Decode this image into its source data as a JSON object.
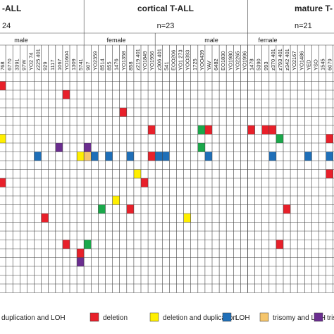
{
  "groups": [
    {
      "title": "-ALL",
      "n": "24",
      "sexes": [
        "male"
      ]
    },
    {
      "title": "cortical T-ALL",
      "n": "n=23",
      "sexes": [
        "female",
        "male"
      ]
    },
    {
      "title": "mature T-",
      "n": "n=21",
      "sexes": [
        "female"
      ]
    }
  ],
  "columns": [
    "768",
    "6770",
    "3391",
    "97W",
    "YO2 74",
    "z225 401",
    "929",
    "1117",
    "1067",
    "YO1604",
    "1309",
    "5741",
    "907",
    "YO2359",
    "8514",
    "855",
    "1476",
    "YO1358",
    "858",
    "z219 401",
    "YO1849",
    "YO1956",
    "z306 401",
    "541",
    "EOO206",
    "YO1 273",
    "YOO393",
    "1725",
    "YOO439",
    "YAV",
    "6482",
    "EO1830",
    "YO1980",
    "YO2265",
    "YO1996",
    "1478",
    "5390",
    "993",
    "z370 401",
    "z793 401",
    "z342 401",
    "YO2167",
    "YO1486",
    "YED",
    "YSO",
    "1545",
    "6079"
  ],
  "legend": [
    {
      "label": "duplication and LOH",
      "color": "#1aa84a"
    },
    {
      "label": "deletion",
      "color": "#e8202a"
    },
    {
      "label": "deletion and duplication",
      "color": "#ffef00"
    },
    {
      "label": "LOH",
      "color": "#1f6fb8"
    },
    {
      "label": "trisomy and LOH",
      "color": "#f5c56b"
    },
    {
      "label": "trisomy",
      "color": "#6a2d8f"
    }
  ],
  "events": [
    [
      0,
      1,
      1
    ],
    [
      9,
      2,
      1
    ],
    [
      17,
      4,
      1
    ],
    [
      21,
      6,
      1
    ],
    [
      28,
      6,
      0
    ],
    [
      29,
      6,
      1
    ],
    [
      35,
      6,
      1
    ],
    [
      37,
      6,
      1
    ],
    [
      38,
      6,
      1
    ],
    [
      0,
      7,
      2
    ],
    [
      39,
      7,
      0
    ],
    [
      46,
      7,
      1
    ],
    [
      8,
      8,
      5
    ],
    [
      12,
      8,
      5
    ],
    [
      28,
      8,
      0
    ],
    [
      5,
      9,
      3
    ],
    [
      11,
      9,
      2
    ],
    [
      12,
      9,
      4
    ],
    [
      13,
      9,
      3
    ],
    [
      15,
      9,
      3
    ],
    [
      18,
      9,
      3
    ],
    [
      21,
      9,
      1
    ],
    [
      22,
      9,
      3
    ],
    [
      23,
      9,
      3
    ],
    [
      29,
      9,
      3
    ],
    [
      38,
      9,
      3
    ],
    [
      43,
      9,
      3
    ],
    [
      46,
      9,
      3
    ],
    [
      19,
      11,
      2
    ],
    [
      46,
      11,
      1
    ],
    [
      0,
      12,
      1
    ],
    [
      20,
      12,
      1
    ],
    [
      16,
      14,
      2
    ],
    [
      14,
      15,
      0
    ],
    [
      18,
      15,
      1
    ],
    [
      40,
      15,
      1
    ],
    [
      6,
      16,
      1
    ],
    [
      26,
      16,
      2
    ],
    [
      9,
      19,
      1
    ],
    [
      12,
      19,
      0
    ],
    [
      39,
      19,
      1
    ],
    [
      11,
      20,
      1
    ],
    [
      11,
      21,
      5
    ]
  ]
}
